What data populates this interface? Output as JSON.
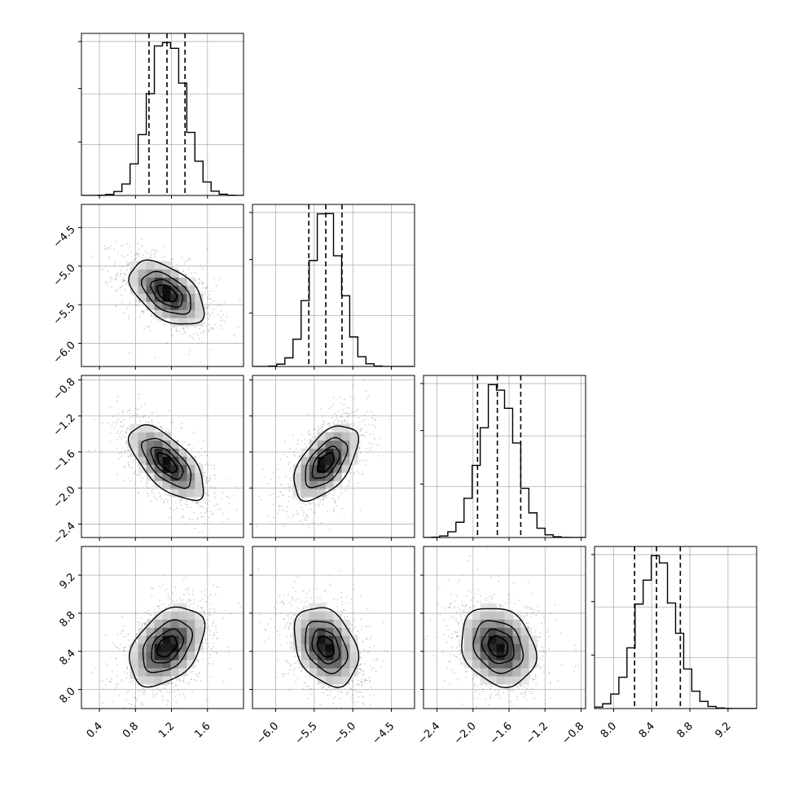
{
  "chart_data": {
    "type": "corner",
    "grid": true,
    "n_params": 4,
    "params": [
      {
        "range": [
          0.2,
          2.0
        ],
        "ticks": [
          0.4,
          0.8,
          1.2,
          1.6
        ],
        "tick_labels": [
          "0.4",
          "0.8",
          "1.2",
          "1.6"
        ],
        "mean": 1.15,
        "sd": 0.2,
        "quantiles": [
          0.95,
          1.15,
          1.35
        ]
      },
      {
        "range": [
          -6.3,
          -4.2
        ],
        "ticks": [
          -6.0,
          -5.5,
          -5.0,
          -4.5
        ],
        "tick_labels": [
          "−6.0",
          "−5.5",
          "−5.0",
          "−4.5"
        ],
        "mean": -5.35,
        "sd": 0.2,
        "quantiles": [
          -5.57,
          -5.35,
          -5.14
        ]
      },
      {
        "range": [
          -2.55,
          -0.75
        ],
        "ticks": [
          -2.4,
          -2.0,
          -1.6,
          -1.2,
          -0.8
        ],
        "tick_labels": [
          "−2.4",
          "−2.0",
          "−1.6",
          "−1.2",
          "−0.8"
        ],
        "mean": -1.72,
        "sd": 0.2,
        "quantiles": [
          -1.95,
          -1.73,
          -1.47
        ]
      },
      {
        "range": [
          7.8,
          9.5
        ],
        "ticks": [
          8.0,
          8.4,
          8.8,
          9.2
        ],
        "tick_labels": [
          "8.0",
          "8.4",
          "8.8",
          "9.2"
        ],
        "mean": 8.45,
        "sd": 0.2,
        "quantiles": [
          8.22,
          8.45,
          8.7
        ]
      }
    ],
    "correlations": [
      {
        "row": 1,
        "col": 0,
        "r": -0.5
      },
      {
        "row": 2,
        "col": 0,
        "r": -0.65
      },
      {
        "row": 2,
        "col": 1,
        "r": 0.55
      },
      {
        "row": 3,
        "col": 0,
        "r": 0.4
      },
      {
        "row": 3,
        "col": 1,
        "r": -0.3
      },
      {
        "row": 3,
        "col": 2,
        "r": -0.2
      }
    ],
    "contour_levels_sigma": [
      0.5,
      1.0,
      1.5,
      2.0
    ]
  }
}
